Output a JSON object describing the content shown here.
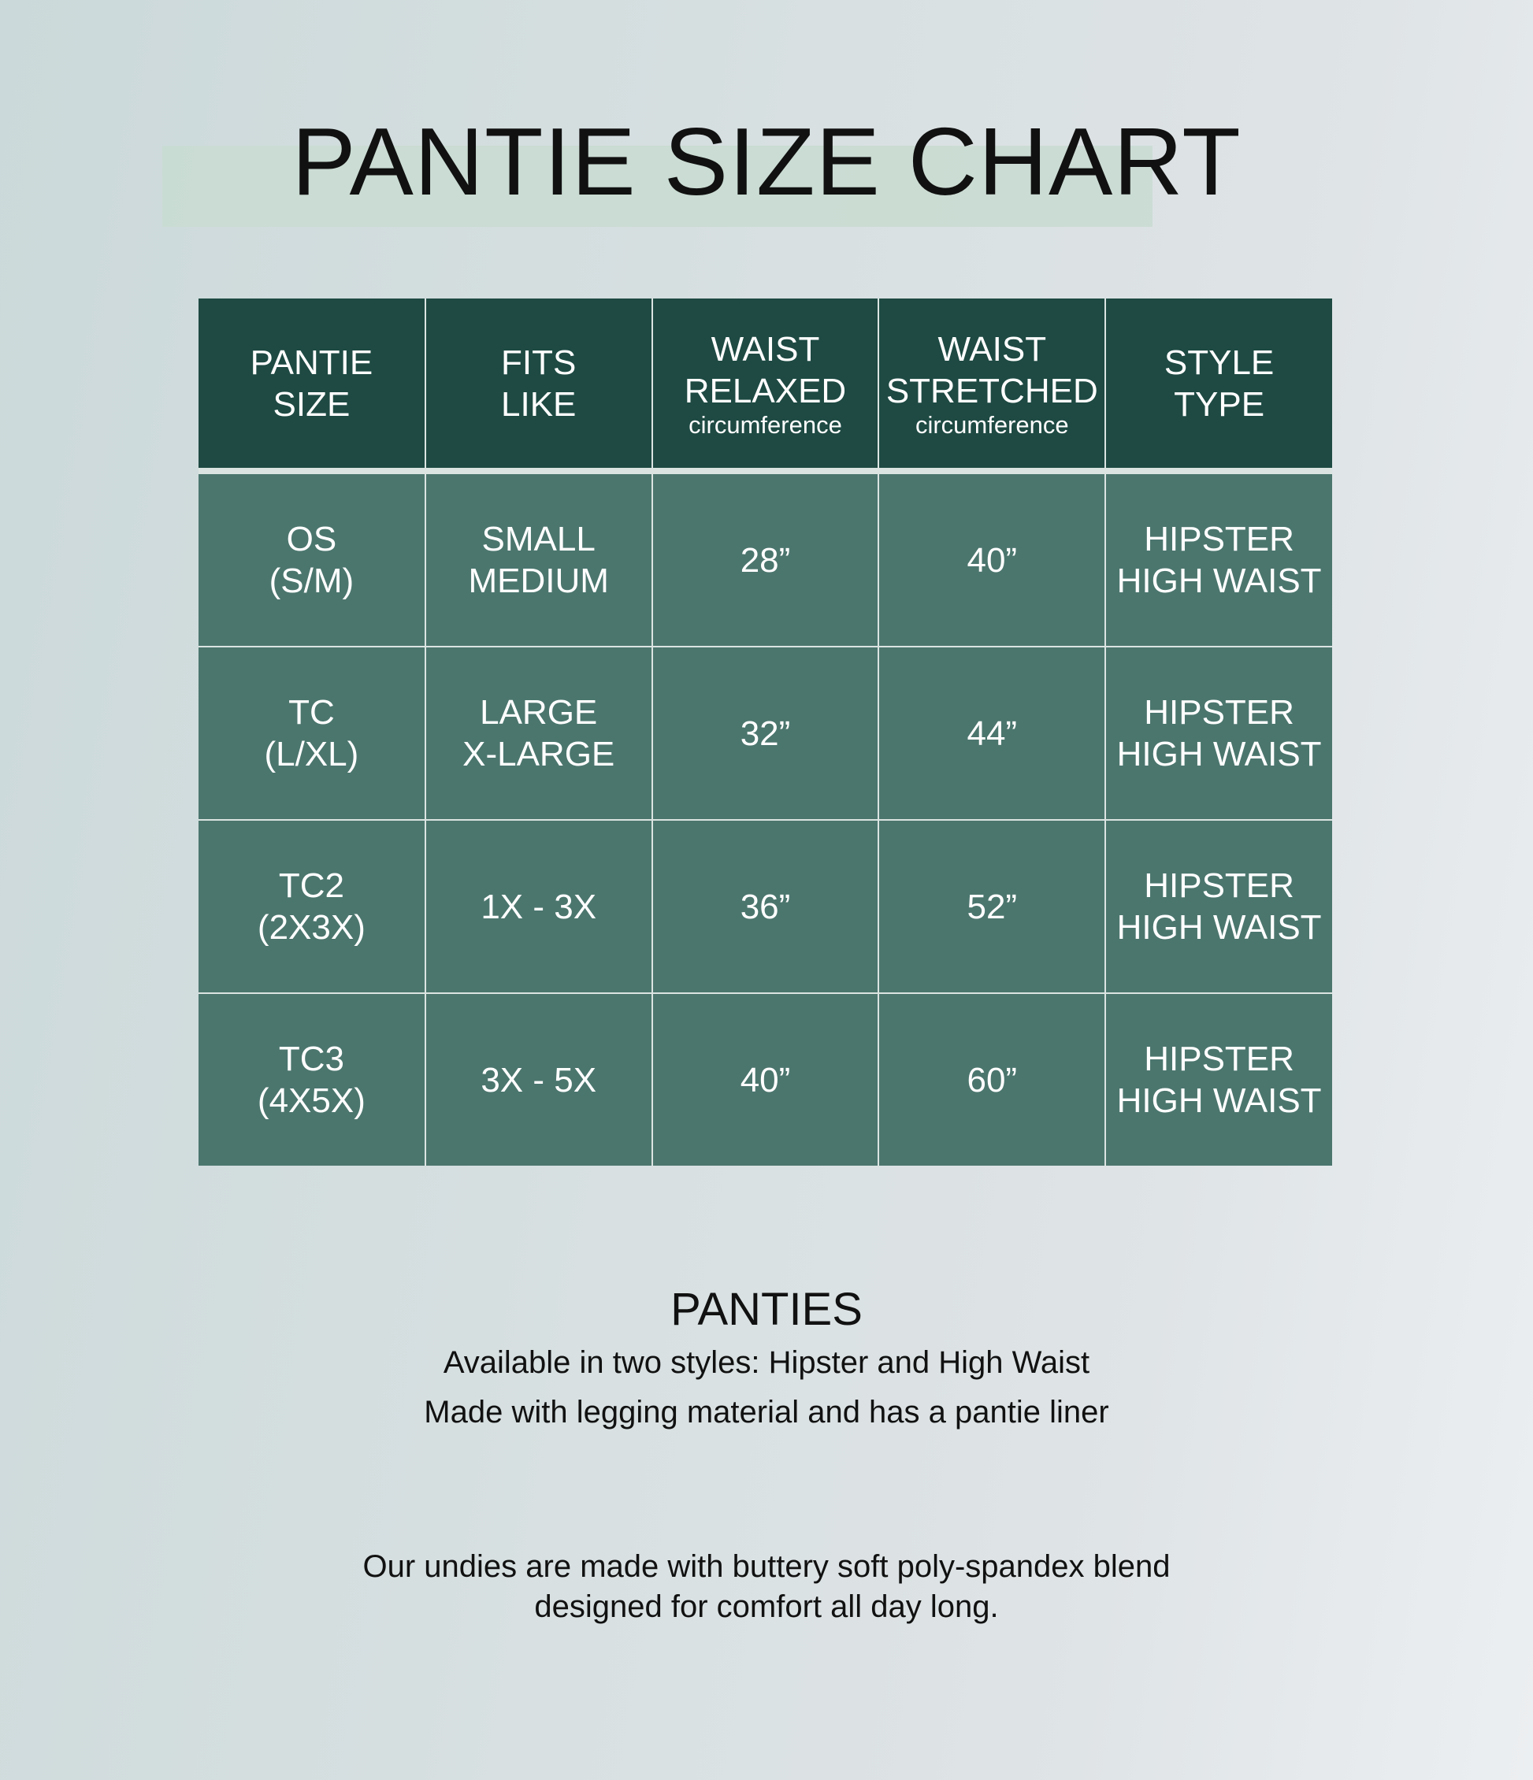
{
  "title": "PANTIE SIZE CHART",
  "table": {
    "headers": [
      {
        "lines": [
          "PANTIE",
          "SIZE"
        ],
        "sub": ""
      },
      {
        "lines": [
          "FITS",
          "LIKE"
        ],
        "sub": ""
      },
      {
        "lines": [
          "WAIST",
          "RELAXED"
        ],
        "sub": "circumference"
      },
      {
        "lines": [
          "WAIST",
          "STRETCHED"
        ],
        "sub": "circumference"
      },
      {
        "lines": [
          "STYLE",
          "TYPE"
        ],
        "sub": ""
      }
    ],
    "rows": [
      [
        [
          "OS",
          "(S/M)"
        ],
        [
          "SMALL",
          "MEDIUM"
        ],
        [
          "28”"
        ],
        [
          "40”"
        ],
        [
          "HIPSTER",
          "HIGH WAIST"
        ]
      ],
      [
        [
          "TC",
          "(L/XL)"
        ],
        [
          "LARGE",
          "X-LARGE"
        ],
        [
          "32”"
        ],
        [
          "44”"
        ],
        [
          "HIPSTER",
          "HIGH WAIST"
        ]
      ],
      [
        [
          "TC2",
          "(2X3X)"
        ],
        [
          "1X - 3X"
        ],
        [
          "36”"
        ],
        [
          "52”"
        ],
        [
          "HIPSTER",
          "HIGH WAIST"
        ]
      ],
      [
        [
          "TC3",
          "(4X5X)"
        ],
        [
          "3X - 5X"
        ],
        [
          "40”"
        ],
        [
          "60”"
        ],
        [
          "HIPSTER",
          "HIGH WAIST"
        ]
      ]
    ]
  },
  "info": {
    "heading": "PANTIES",
    "line1": "Available in two styles: Hipster and High Waist",
    "line2": "Made with legging material and has a pantie liner",
    "note1": "Our undies are made with buttery soft poly-spandex blend",
    "note2": "designed for comfort all day long."
  },
  "colors": {
    "header": "#1e4a43",
    "body": "#4b766e",
    "band": "#c9dbd1"
  }
}
